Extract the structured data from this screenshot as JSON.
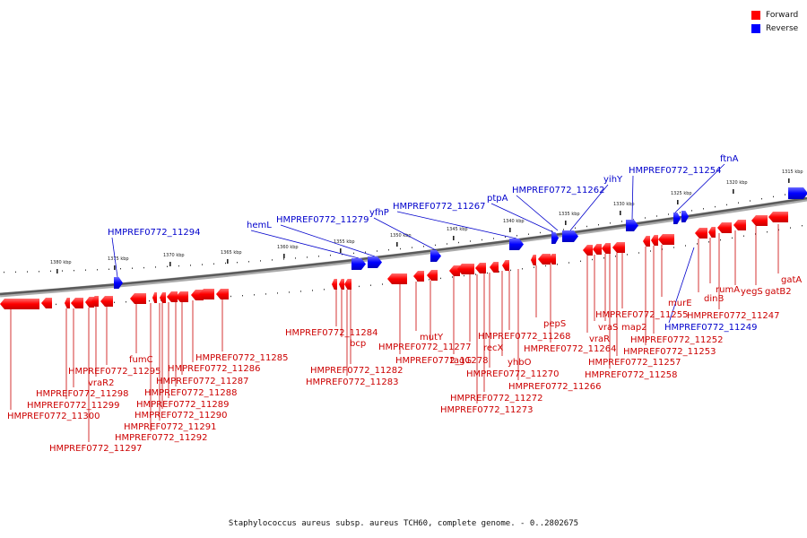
{
  "legend": {
    "forward_label": "Forward",
    "reverse_label": "Reverse",
    "forward_color": "#ff0000",
    "reverse_color": "#0000ff"
  },
  "caption": "Staphylococcus aureus subsp. aureus TCH60, complete genome. - 0..2802675",
  "colors": {
    "forward": "#ff0000",
    "reverse": "#0000ff",
    "forward_label": "#cc0000",
    "reverse_label": "#0000cc"
  },
  "scale_labels": [
    "1380 kbp",
    "1375 kbp",
    "1370 kbp",
    "1365 kbp",
    "1360 kbp",
    "1355 kbp",
    "1350 kbp",
    "1345 kbp",
    "1340 kbp",
    "1335 kbp",
    "1330 kbp",
    "1325 kbp",
    "1320 kbp",
    "1315 kbp"
  ],
  "reverse_genes": [
    "HMPREF0772_11294",
    "hemL",
    "HMPREF0772_11279",
    "yfhP",
    "HMPREF0772_11267",
    "ptpA",
    "HMPREF0772_11262",
    "yihY",
    "HMPREF0772_11254",
    "ftnA",
    "HMPREF0772_11249"
  ],
  "forward_genes": [
    "HMPREF0772_11300",
    "HMPREF0772_11299",
    "HMPREF0772_11298",
    "HMPREF0772_11297",
    "vraR2",
    "HMPREF0772_11295",
    "fumC",
    "HMPREF0772_11292",
    "HMPREF0772_11291",
    "HMPREF0772_11290",
    "HMPREF0772_11289",
    "HMPREF0772_11288",
    "HMPREF0772_11287",
    "HMPREF0772_11286",
    "HMPREF0772_11285",
    "HMPREF0772_11284",
    "bcp",
    "HMPREF0772_11283",
    "HMPREF0772_11282",
    "HMPREF0772_11278",
    "mutY",
    "HMPREF0772_11277",
    "tagG",
    "recX",
    "HMPREF0772_11273",
    "HMPREF0772_11272",
    "HMPREF0772_11270",
    "yhbO",
    "HMPREF0772_11268",
    "HMPREF0772_11266",
    "pepS",
    "HMPREF0772_11264",
    "vraR",
    "vraS",
    "map2",
    "HMPREF0772_11258",
    "HMPREF0772_11257",
    "HMPREF0772_11255",
    "HMPREF0772_11253",
    "HMPREF0772_11252",
    "murE",
    "dinB",
    "rumA",
    "HMPREF0772_11247",
    "yegS",
    "gatB2",
    "gatA"
  ]
}
